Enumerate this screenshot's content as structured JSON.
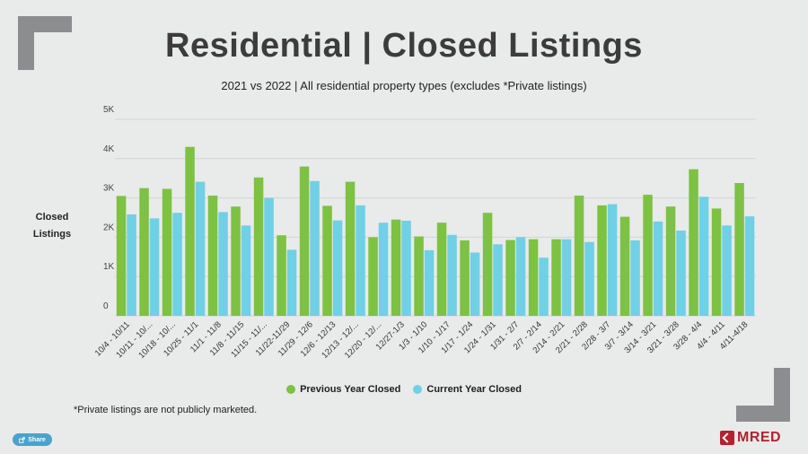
{
  "header": {
    "title": "Residential | Closed Listings",
    "subtitle": "2021 vs 2022 | All residential property types (excludes *Private listings)"
  },
  "footnote": "*Private listings are not publicly marketed.",
  "share_label": "Share",
  "logo_text": "MRED",
  "icons": {
    "share": "share-icon",
    "logo": "mred-logo-icon"
  },
  "chart_data": {
    "type": "bar",
    "title": "",
    "xlabel": "",
    "ylabel": "Closed Listings",
    "ylim": [
      0,
      5000
    ],
    "y_ticks": [
      0,
      1000,
      2000,
      3000,
      4000,
      5000
    ],
    "y_tick_labels": [
      "0",
      "1K",
      "2K",
      "3K",
      "4K",
      "5K"
    ],
    "grid": true,
    "legend_position": "bottom",
    "categories": [
      "10/4 - 10/11",
      "10/11 - 10/...",
      "10/18 - 10/...",
      "10/25 - 11/1",
      "11/1 - 11/8",
      "11/8 - 11/15",
      "11/15 - 11/...",
      "11/22-11/29",
      "11/29 - 12/6",
      "12/6 - 12/13",
      "12/13 - 12/...",
      "12/20 - 12/...",
      "12/27-1/3",
      "1/3 - 1/10",
      "1/10 - 1/17",
      "1/17 - 1/24",
      "1/24 - 1/31",
      "1/31 - 2/7",
      "2/7 - 2/14",
      "2/14 - 2/21",
      "2/21 - 2/28",
      "2/28 - 3/7",
      "3/7 - 3/14",
      "3/14 - 3/21",
      "3/21 - 3/28",
      "3/28 - 4/4",
      "4/4 - 4/11",
      "4/11-4/18"
    ],
    "series": [
      {
        "name": "Previous Year Closed",
        "color": "#7dc242",
        "values": [
          3050,
          3250,
          3230,
          4300,
          3060,
          2780,
          3520,
          2050,
          3800,
          2800,
          3410,
          2000,
          2450,
          2020,
          2370,
          1920,
          2620,
          1930,
          1950,
          1950,
          3060,
          2810,
          2520,
          3080,
          2780,
          3730,
          2730,
          3380
        ]
      },
      {
        "name": "Current Year Closed",
        "color": "#6fd0e6",
        "values": [
          2580,
          2480,
          2620,
          3410,
          2640,
          2300,
          3000,
          1680,
          3430,
          2430,
          2810,
          2370,
          2420,
          1670,
          2060,
          1610,
          1820,
          2000,
          1480,
          1950,
          1880,
          2840,
          1920,
          2400,
          2170,
          3030,
          2300,
          2530
        ]
      }
    ]
  }
}
